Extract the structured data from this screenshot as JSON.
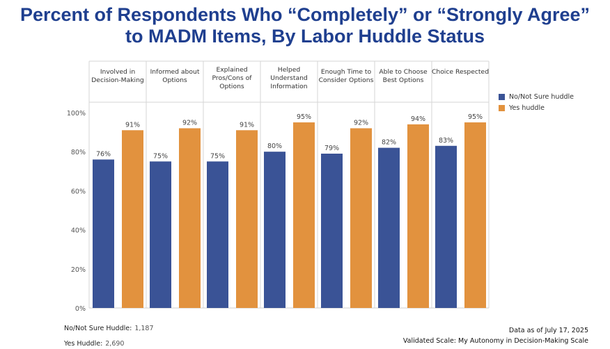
{
  "title_line1": "Percent of Respondents Who “Completely” or “Strongly Agree”",
  "title_line2": "to MADM Items, By Labor Huddle Status",
  "chart_data": {
    "type": "bar",
    "categories": [
      [
        "Involved in",
        "Decision-Making"
      ],
      [
        "Informed about",
        "Options"
      ],
      [
        "Explained",
        "Pros/Cons of",
        "Options"
      ],
      [
        "Helped",
        "Understand",
        "Information"
      ],
      [
        "Enough Time to",
        "Consider Options"
      ],
      [
        "Able to Choose",
        "Best Options"
      ],
      [
        "Choice Respected"
      ]
    ],
    "series": [
      {
        "name": "No/Not Sure huddle",
        "color": "#3a5396",
        "values": [
          76,
          75,
          75,
          80,
          79,
          82,
          83
        ],
        "labels": [
          "76%",
          "75%",
          "75%",
          "80%",
          "79%",
          "82%",
          "83%"
        ]
      },
      {
        "name": "Yes huddle",
        "color": "#e2923e",
        "values": [
          91,
          92,
          91,
          95,
          92,
          94,
          95
        ],
        "labels": [
          "91%",
          "92%",
          "91%",
          "95%",
          "92%",
          "94%",
          "95%"
        ]
      }
    ],
    "ylim": [
      0,
      100
    ],
    "yticks": [
      0,
      20,
      40,
      60,
      80,
      100
    ],
    "ytick_labels": [
      "0%",
      "20%",
      "40%",
      "60%",
      "80%",
      "100%"
    ],
    "legend_position": "right",
    "grid": false
  },
  "footer": {
    "no_huddle_label": "No/Not Sure Huddle:",
    "no_huddle_count": "1,187",
    "yes_huddle_label": "Yes Huddle:",
    "yes_huddle_count": "2,690",
    "data_as_of": "Data as of July 17, 2025",
    "validated_scale": "Validated Scale: My Autonomy in Decision-Making Scale"
  }
}
